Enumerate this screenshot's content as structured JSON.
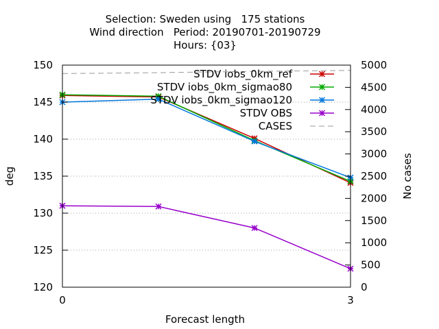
{
  "chart_data": {
    "type": "line",
    "title": [
      "Selection: Sweden using   175 stations",
      "Wind direction   Period: 20190701-20190729",
      "Hours: {03}"
    ],
    "xlabel": "Forecast length",
    "ylabel": "deg",
    "y2label": "No cases",
    "xlim": [
      0,
      3
    ],
    "ylim": [
      120,
      150
    ],
    "y2lim": [
      0,
      5000
    ],
    "xticks": [
      "0",
      "3"
    ],
    "yticks": [
      "120",
      "125",
      "130",
      "135",
      "140",
      "145",
      "150"
    ],
    "y2ticks": [
      "0",
      "500",
      "1000",
      "1500",
      "2000",
      "2500",
      "3000",
      "3500",
      "4000",
      "4500",
      "5000"
    ],
    "grid": true,
    "legend_position": "top-right",
    "series": [
      {
        "name": "STDV iobs_0km_ref",
        "color": "#cc0000",
        "axis": "y",
        "x": [
          0,
          1,
          2,
          3
        ],
        "values": [
          145.9,
          145.7,
          140.1,
          134.1
        ]
      },
      {
        "name": "STDV iobs_0km_sigmao80",
        "color": "#00aa00",
        "axis": "y",
        "x": [
          0,
          1,
          2,
          3
        ],
        "values": [
          146.0,
          145.8,
          139.8,
          134.3
        ]
      },
      {
        "name": "STDV iobs_0km_sigmao120",
        "color": "#0077dd",
        "axis": "y",
        "x": [
          0,
          1,
          2,
          3
        ],
        "values": [
          145.0,
          145.4,
          139.7,
          134.8
        ]
      },
      {
        "name": "STDV OBS",
        "color": "#9900cc",
        "axis": "y",
        "x": [
          0,
          1,
          2,
          3
        ],
        "values": [
          131.0,
          130.9,
          128.0,
          122.5
        ]
      },
      {
        "name": "CASES",
        "color": "#999999",
        "axis": "y2",
        "dashed": true,
        "x": [
          0,
          1,
          2,
          3
        ],
        "values": [
          4810,
          4830,
          4860,
          4880
        ]
      }
    ]
  }
}
